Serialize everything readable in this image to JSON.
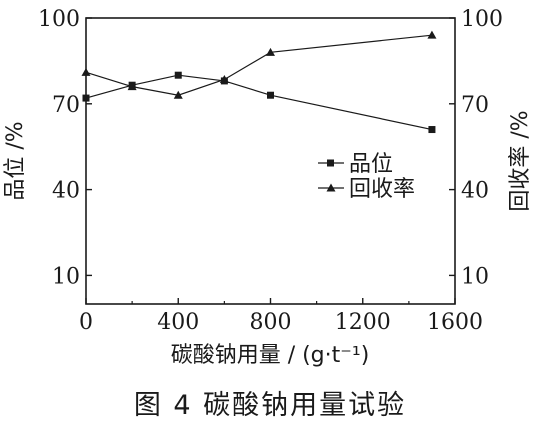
{
  "chart_data": {
    "type": "line",
    "caption": "图 4    碳酸钠用量试验",
    "xlabel": "碳酸钠用量 / (g·t⁻¹)",
    "ylabel_left": "品位 /%",
    "ylabel_right": "回收率 /%",
    "xlim": [
      0,
      1600
    ],
    "ylim": [
      0,
      100
    ],
    "x_ticks": [
      "0",
      "400",
      "800",
      "1200",
      "1600"
    ],
    "y_ticks_left": [
      "10",
      "40",
      "70",
      "100"
    ],
    "y_ticks_right": [
      "10",
      "40",
      "70",
      "100"
    ],
    "grid": false,
    "legend_position": "center-right",
    "series": [
      {
        "name": "品位",
        "marker": "square",
        "x": [
          0,
          200,
          400,
          600,
          800,
          1500
        ],
        "y": [
          72,
          76.5,
          80,
          78,
          73,
          61
        ]
      },
      {
        "name": "回收率",
        "marker": "triangle",
        "x": [
          0,
          200,
          400,
          600,
          800,
          1500
        ],
        "y": [
          81,
          76,
          73,
          78.5,
          88,
          94
        ]
      }
    ]
  }
}
